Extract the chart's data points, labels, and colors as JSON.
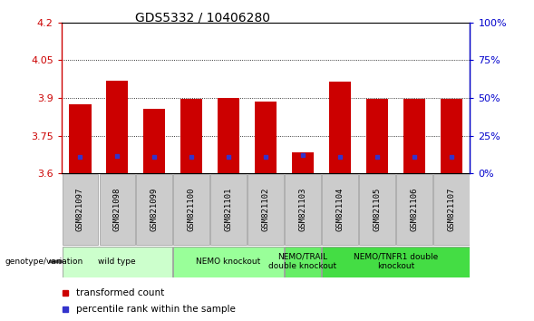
{
  "title": "GDS5332 / 10406280",
  "samples": [
    "GSM821097",
    "GSM821098",
    "GSM821099",
    "GSM821100",
    "GSM821101",
    "GSM821102",
    "GSM821103",
    "GSM821104",
    "GSM821105",
    "GSM821106",
    "GSM821107"
  ],
  "transformed_counts": [
    3.875,
    3.97,
    3.855,
    3.895,
    3.9,
    3.885,
    3.685,
    3.965,
    3.895,
    3.895,
    3.895
  ],
  "percentile_positions": [
    3.665,
    3.668,
    3.665,
    3.666,
    3.666,
    3.666,
    3.672,
    3.666,
    3.666,
    3.666,
    3.666
  ],
  "ymin": 3.6,
  "ymax": 4.2,
  "yticks_left": [
    3.6,
    3.75,
    3.9,
    4.05,
    4.2
  ],
  "yticks_right": [
    0,
    25,
    50,
    75,
    100
  ],
  "bar_color": "#cc0000",
  "percentile_color": "#3333cc",
  "groups": [
    {
      "label": "wild type",
      "start": 0,
      "end": 2,
      "color": "#ccffcc"
    },
    {
      "label": "NEMO knockout",
      "start": 3,
      "end": 5,
      "color": "#99ff99"
    },
    {
      "label": "NEMO/TRAIL\ndouble knockout",
      "start": 6,
      "end": 6,
      "color": "#66ee66"
    },
    {
      "label": "NEMO/TNFR1 double\nknockout",
      "start": 7,
      "end": 10,
      "color": "#44dd44"
    }
  ],
  "genotype_label": "genotype/variation",
  "legend_items": [
    {
      "label": "transformed count",
      "color": "#cc0000"
    },
    {
      "label": "percentile rank within the sample",
      "color": "#3333cc"
    }
  ],
  "sample_box_color": "#cccccc",
  "bar_width": 0.6,
  "title_fontsize": 10,
  "tick_fontsize": 8,
  "label_fontsize": 7.5
}
